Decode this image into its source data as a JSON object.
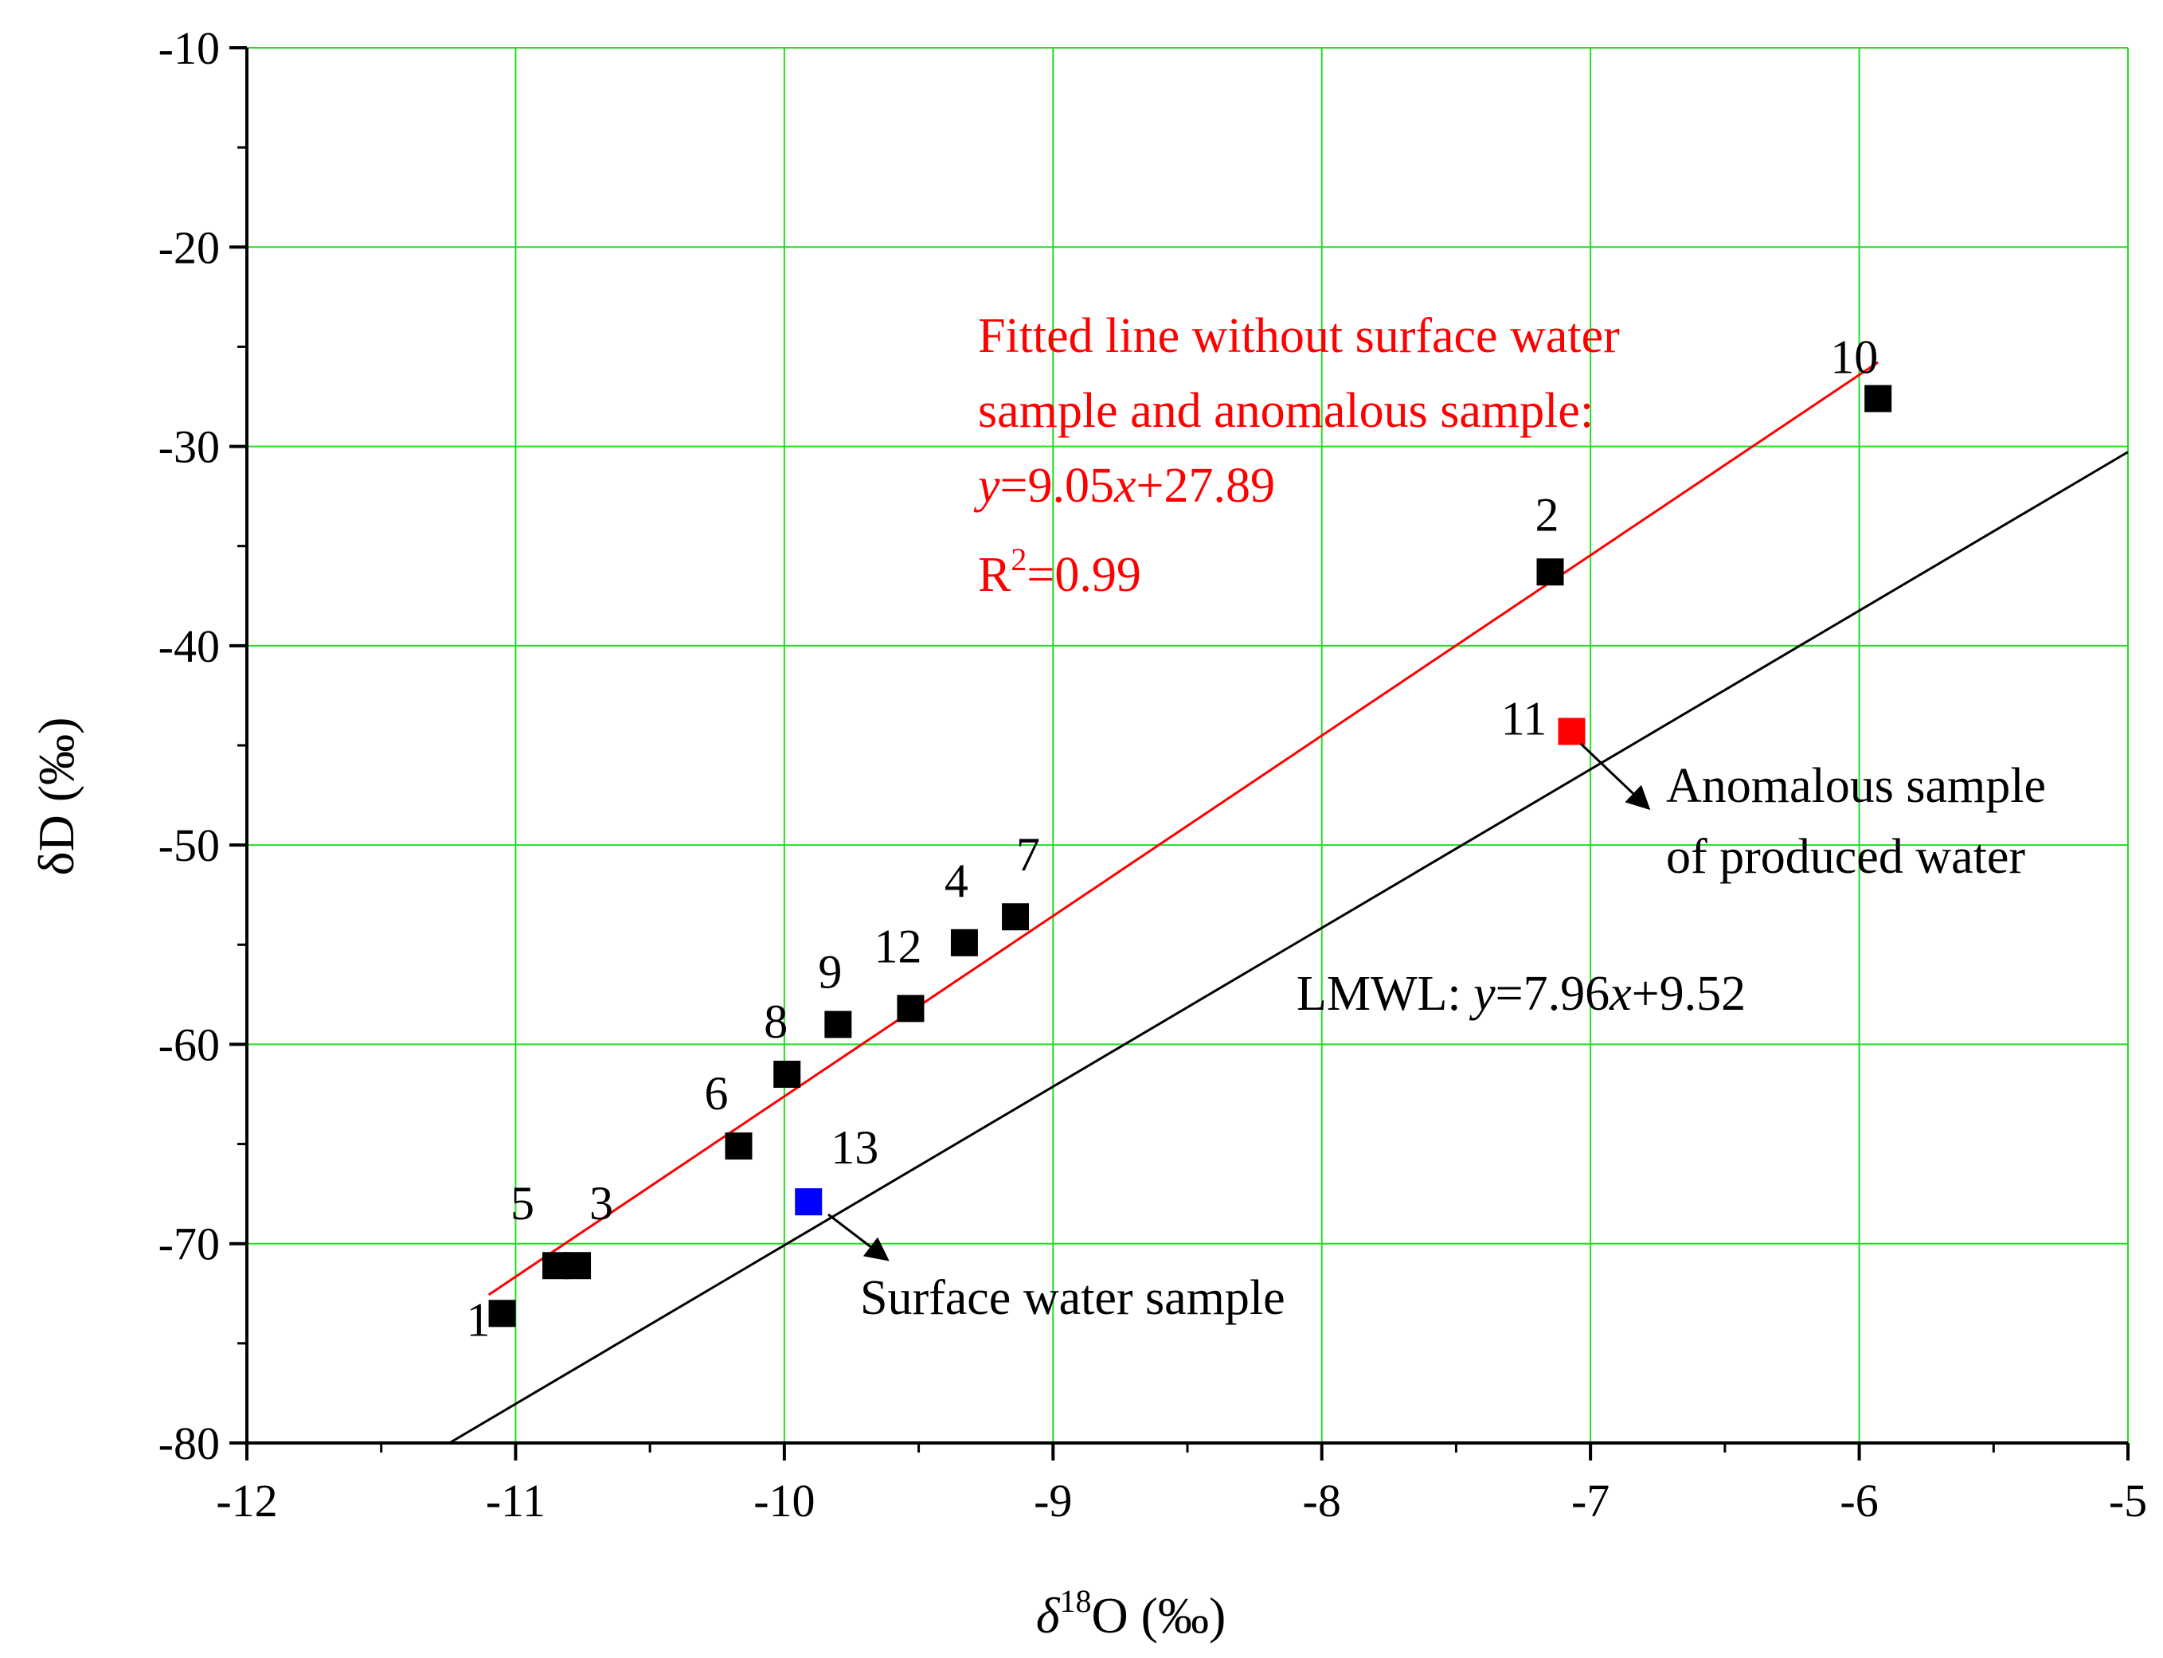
{
  "chart_data": {
    "type": "scatter",
    "x": {
      "label_prefix": "δ",
      "label_sup": "18",
      "label_suffix": "O (‰)",
      "range": [
        -12,
        -5
      ],
      "ticks": [
        -12,
        -11,
        -10,
        -9,
        -8,
        -7,
        -6,
        -5
      ],
      "tick_labels": [
        "-12",
        "-11",
        "-10",
        "-9",
        "-8",
        "-7",
        "-6",
        "-5"
      ]
    },
    "y": {
      "label": "δD (‰)",
      "range": [
        -80,
        -10
      ],
      "ticks": [
        -80,
        -70,
        -60,
        -50,
        -40,
        -30,
        -20,
        -10
      ],
      "tick_labels": [
        "-80",
        "-70",
        "-60",
        "-50",
        "-40",
        "-30",
        "-20",
        "-10"
      ]
    },
    "grid": true,
    "points": [
      {
        "id": "1",
        "x": -11.05,
        "y": -73.5,
        "color": "#000000"
      },
      {
        "id": "2",
        "x": -7.15,
        "y": -36.3,
        "color": "#000000"
      },
      {
        "id": "3",
        "x": -10.77,
        "y": -71.1,
        "color": "#000000"
      },
      {
        "id": "4",
        "x": -9.33,
        "y": -54.9,
        "color": "#000000"
      },
      {
        "id": "5",
        "x": -10.85,
        "y": -71.1,
        "color": "#000000"
      },
      {
        "id": "6",
        "x": -10.17,
        "y": -65.1,
        "color": "#000000"
      },
      {
        "id": "7",
        "x": -9.14,
        "y": -53.6,
        "color": "#000000"
      },
      {
        "id": "8",
        "x": -9.99,
        "y": -61.5,
        "color": "#000000"
      },
      {
        "id": "9",
        "x": -9.8,
        "y": -59.0,
        "color": "#000000"
      },
      {
        "id": "10",
        "x": -5.93,
        "y": -27.6,
        "color": "#000000"
      },
      {
        "id": "11",
        "x": -7.07,
        "y": -44.3,
        "color": "#ff0000"
      },
      {
        "id": "12",
        "x": -9.53,
        "y": -58.2,
        "color": "#000000"
      },
      {
        "id": "13",
        "x": -9.91,
        "y": -67.9,
        "color": "#0000ff"
      }
    ],
    "lines": [
      {
        "name": "Fitted line",
        "slope": 9.05,
        "intercept": 27.89,
        "x_range": [
          -11.1,
          -5.93
        ],
        "color": "#ff0000"
      },
      {
        "name": "LMWL",
        "slope": 7.96,
        "intercept": 9.52,
        "x_range": [
          -11.25,
          -5.0
        ],
        "color": "#000000"
      }
    ],
    "annotations": {
      "fitted": {
        "line1": "Fitted line without surface water",
        "line2": "sample and anomalous sample:",
        "eq_y": "y",
        "eq_mid": "=9.05",
        "eq_x": "x",
        "eq_end": "+27.89",
        "r2_base": "R",
        "r2_sup": "2",
        "r2_value": "=0.99"
      },
      "lmwl": {
        "prefix": "LMWL: ",
        "eq_y": "y",
        "eq_mid": "=7.96",
        "eq_x": "x",
        "eq_end": "+9.52"
      },
      "anomalous": {
        "line1": "Anomalous sample",
        "line2": "of produced water"
      },
      "surface": {
        "text": "Surface water sample"
      }
    },
    "colors": {
      "grid": "#22dd22",
      "axis": "#000000",
      "fit_line": "#ff0000",
      "lmwl_line": "#000000"
    }
  }
}
